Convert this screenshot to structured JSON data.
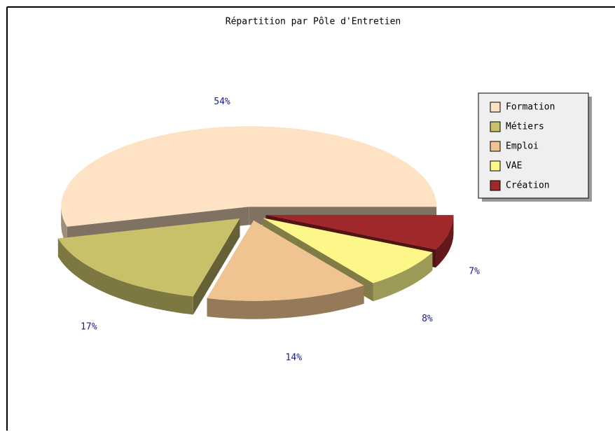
{
  "chart_data": {
    "type": "pie",
    "title": "Répartition par Pôle d'Entretien",
    "categories": [
      "Formation",
      "Métiers",
      "Emploi",
      "VAE",
      "Création"
    ],
    "values": [
      54,
      17,
      14,
      8,
      7
    ],
    "value_labels": [
      "54%",
      "17%",
      "14%",
      "8%",
      "7%"
    ],
    "colors": [
      "#fde3c4",
      "#c9c06a",
      "#f0c490",
      "#fdf78a",
      "#a0282a"
    ],
    "legend": "right"
  }
}
